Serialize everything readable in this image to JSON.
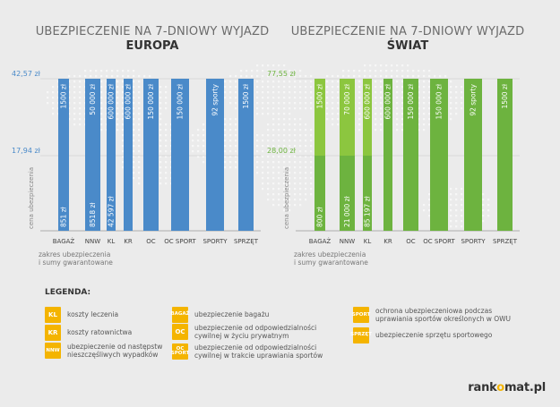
{
  "chart_data": [
    {
      "type": "bar",
      "title": "UBEZPIECZENIE NA 7-DNIOWY WYJAZD",
      "subtitle": "EUROPA",
      "categories": [
        "BAGAŻ",
        "NNW",
        "KL",
        "KR",
        "OC",
        "OC SPORT",
        "SPORTY",
        "SPRZĘT"
      ],
      "ylabel": "cena ubezpieczenia",
      "xlabel": "zakres ubezpieczenia i sumy gwarantowane",
      "ytick_labels": [
        "42,57 zł",
        "17,94 zł"
      ],
      "color": "#4a8ac9",
      "color_light": "#3d7cbd",
      "upper_labels": [
        "1500 zł",
        "50 000 zł",
        "600 000 zł",
        "600 000 zł",
        "150 000 zł",
        "150 000 zł",
        "92 sporty",
        "1500 zł"
      ],
      "lower_labels": [
        "851 zł",
        "8518 zł",
        "42 597 zł",
        "",
        "",
        "",
        "",
        ""
      ]
    },
    {
      "type": "bar",
      "title": "UBEZPIECZENIE NA 7-DNIOWY WYJAZD",
      "subtitle": "ŚWIAT",
      "categories": [
        "BAGAŻ",
        "NNW",
        "KL",
        "KR",
        "OC",
        "OC SPORT",
        "SPORTY",
        "SPRZĘT"
      ],
      "ylabel": "cena ubezpieczenia",
      "xlabel": "zakres ubezpieczenia i sumy gwarantowane",
      "ytick_labels": [
        "77,55 zł",
        "28,00 zł"
      ],
      "color": "#6db33f",
      "color_light": "#8cc63f",
      "upper_labels": [
        "1500 zł",
        "70 000 zł",
        "600 000 zł",
        "600 000 zł",
        "150 000 zł",
        "150 000 zł",
        "92 sporty",
        "1500 zł"
      ],
      "lower_labels": [
        "800 zł",
        "21 000 zł",
        "85 197 zł",
        "",
        "",
        "",
        "",
        ""
      ]
    }
  ],
  "legend": {
    "title": "LEGENDA:",
    "items": [
      {
        "badge": "KL",
        "text": "koszty leczenia"
      },
      {
        "badge": "KR",
        "text": "koszty ratownictwa"
      },
      {
        "badge": "NNW",
        "text": "ubezpieczenie od następstw nieszczęśliwych wypadków"
      },
      {
        "badge": "BAGAŻ",
        "text": "ubezpieczenie bagażu"
      },
      {
        "badge": "OC",
        "text": "ubezpieczenie od odpowiedzialności cywilnej w życiu prywatnym"
      },
      {
        "badge": "OC SPORT",
        "text": "ubezpieczenie od odpowiedzialności cywilnej w trakcie uprawiania sportów"
      },
      {
        "badge": "SPORT",
        "text": "ochrona ubezpieczeniowa podczas uprawiania sportów określonych w OWU"
      },
      {
        "badge": "SPRZĘT",
        "text": "ubezpieczenie sprzętu sportowego"
      }
    ]
  },
  "brand": {
    "pre": "rank",
    "o": "o",
    "post": "mat.pl"
  }
}
